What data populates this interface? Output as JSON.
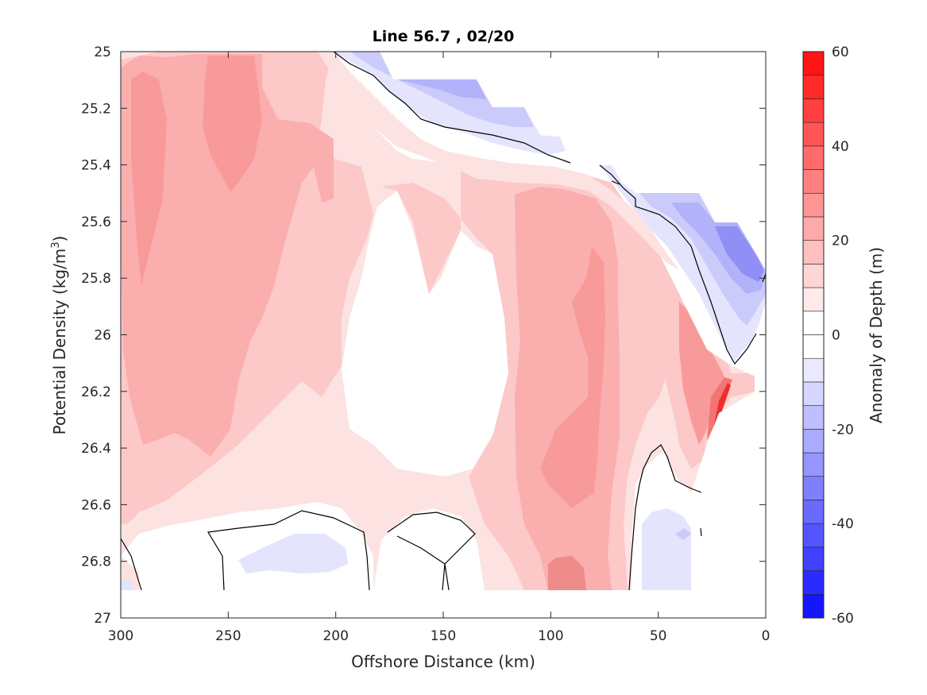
{
  "chart_data": {
    "type": "heatmap",
    "subtype": "filled-contour",
    "title": "Line 56.7 , 02/20",
    "xlabel": "Offshore Distance (km)",
    "ylabel": "Potential Density (kg/m",
    "ylabel_sup": "3",
    "ylabel_close": ")",
    "xlim": [
      300,
      0
    ],
    "ylim": [
      25,
      27
    ],
    "x_reversed": true,
    "y_reversed": true,
    "x_ticks": [
      300,
      250,
      200,
      150,
      100,
      50,
      0
    ],
    "y_ticks": [
      25,
      25.2,
      25.4,
      25.6,
      25.8,
      26,
      26.2,
      26.4,
      26.6,
      26.8,
      27
    ],
    "y_tick_labels": [
      "25",
      "25.2",
      "25.4",
      "25.6",
      "25.8",
      "26",
      "26.2",
      "26.4",
      "26.6",
      "26.8",
      "27"
    ],
    "colorbar": {
      "label": "Anomaly of Depth (m)",
      "range": [
        -60,
        60
      ],
      "step": 5,
      "ticks": [
        60,
        40,
        20,
        0,
        -20,
        -40,
        -60
      ],
      "color_min": "#0000ff",
      "color_zero": "#ffffff",
      "color_max": "#ff0000"
    },
    "zero_contour_color": "#000000",
    "regions": [
      {
        "name": "offshore positive anomaly",
        "x": [
          300,
          200
        ],
        "y": [
          25,
          26.65
        ],
        "value_range": [
          5,
          20
        ]
      },
      {
        "name": "mid-shelf positive anomaly core",
        "x": [
          100,
          70
        ],
        "y": [
          25.6,
          26.9
        ],
        "value_range": [
          5,
          25
        ]
      },
      {
        "name": "nearshore strong positive anomaly",
        "x": [
          30,
          15
        ],
        "y": [
          26.2,
          26.45
        ],
        "value_range": [
          15,
          45
        ]
      },
      {
        "name": "near-surface negative anomaly",
        "x": [
          175,
          0
        ],
        "y": [
          25,
          26.1
        ],
        "value_range": [
          -35,
          -5
        ]
      },
      {
        "name": "deep negative anomaly",
        "x": [
          250,
          190
        ],
        "y": [
          26.75,
          26.85
        ],
        "value_range": [
          -10,
          -5
        ]
      },
      {
        "name": "deep nearshore negative anomaly",
        "x": [
          50,
          35
        ],
        "y": [
          26.65,
          26.9
        ],
        "value_range": [
          -10,
          -5
        ]
      }
    ]
  }
}
